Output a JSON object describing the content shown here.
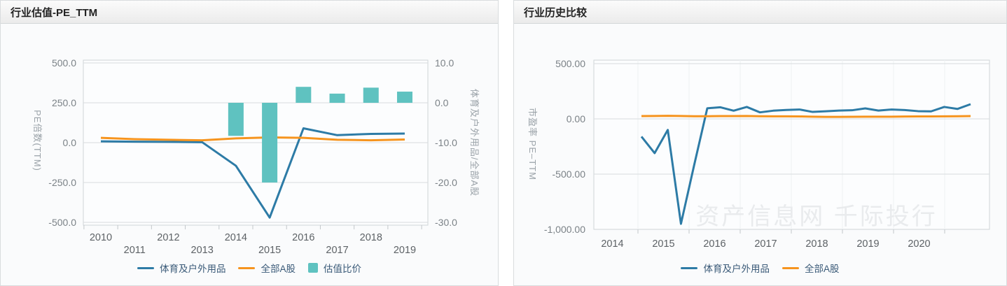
{
  "panels": [
    {
      "title": "行业估值-PE_TTM"
    },
    {
      "title": "行业历史比较",
      "watermark": "资产信息网 千际投行"
    }
  ],
  "chart_data": [
    {
      "type": "line+bar",
      "title": "行业估值-PE_TTM",
      "categories": [
        "2010",
        "2011",
        "2012",
        "2013",
        "2014",
        "2015",
        "2016",
        "2017",
        "2018",
        "2019"
      ],
      "series": [
        {
          "name": "体育及户外用品",
          "type": "line",
          "y_axis": "left",
          "color": "#2d7ba6",
          "values": [
            8,
            6,
            5,
            3,
            -145,
            -470,
            90,
            47,
            55,
            57
          ]
        },
        {
          "name": "全部A股",
          "type": "line",
          "y_axis": "left",
          "color": "#f6941e",
          "values": [
            30,
            22,
            18,
            15,
            27,
            33,
            30,
            18,
            15,
            20
          ]
        },
        {
          "name": "估值比价",
          "type": "bar",
          "y_axis": "right",
          "color": "#5fc2c0",
          "values": [
            null,
            null,
            null,
            null,
            -8.3,
            -20,
            4,
            2.3,
            3.8,
            2.8
          ]
        }
      ],
      "y_axis_left": {
        "label": "PE倍数(TTM)",
        "ticks": [
          500,
          250,
          0,
          -250,
          -500
        ],
        "tick_labels": [
          "500.0",
          "250.0",
          "0.0",
          "-250.0",
          "-500.0"
        ],
        "range": [
          -500,
          500
        ]
      },
      "y_axis_right": {
        "label": "体育及户外用品/全部A股",
        "ticks": [
          10,
          0,
          -10,
          -20,
          -30
        ],
        "tick_labels": [
          "10.0",
          "0.0",
          "-10.0",
          "-20.0",
          "-30.0"
        ],
        "range": [
          -30,
          10
        ]
      },
      "grid": "horizontal",
      "x_labels_staggered": true,
      "legend_position": "bottom"
    },
    {
      "type": "line",
      "title": "行业历史比较",
      "x": [
        "2014Q3",
        "2014Q4",
        "2015Q1",
        "2015Q2",
        "2015Q3",
        "2015Q4",
        "2016Q1",
        "2016Q2",
        "2016Q3",
        "2016Q4",
        "2017Q1",
        "2017Q2",
        "2017Q3",
        "2017Q4",
        "2018Q1",
        "2018Q2",
        "2018Q3",
        "2018Q4",
        "2019Q1",
        "2019Q2",
        "2019Q3",
        "2019Q4",
        "2020Q1",
        "2020Q2",
        "2020Q3",
        "2020Q4"
      ],
      "x_tick_labels": [
        "2014",
        "2015",
        "2016",
        "2017",
        "2018",
        "2019",
        "2020"
      ],
      "series": [
        {
          "name": "体育及户外用品",
          "type": "line",
          "color": "#2d7ba6",
          "values": [
            -160,
            -310,
            -100,
            -950,
            -420,
            96,
            105,
            74,
            108,
            59,
            74,
            81,
            85,
            63,
            69,
            75,
            78,
            95,
            75,
            85,
            80,
            70,
            68,
            108,
            90,
            133
          ]
        },
        {
          "name": "全部A股",
          "type": "line",
          "color": "#f6941e",
          "values": [
            25,
            26,
            28,
            26,
            24,
            24,
            25,
            25,
            26,
            24,
            23,
            23,
            22,
            20,
            18,
            18,
            19,
            20,
            20,
            20,
            21,
            22,
            22,
            23,
            24,
            25
          ]
        }
      ],
      "y_axis": {
        "label": "市盈率 PE–TTM",
        "ticks": [
          500,
          0,
          -500,
          -1000
        ],
        "tick_labels": [
          "500.00",
          "0.00",
          "-500.00",
          "-1,000.00"
        ],
        "range": [
          -1000,
          530
        ]
      },
      "grid": "both",
      "legend_position": "bottom",
      "watermark": "资产信息网 千际投行"
    }
  ]
}
